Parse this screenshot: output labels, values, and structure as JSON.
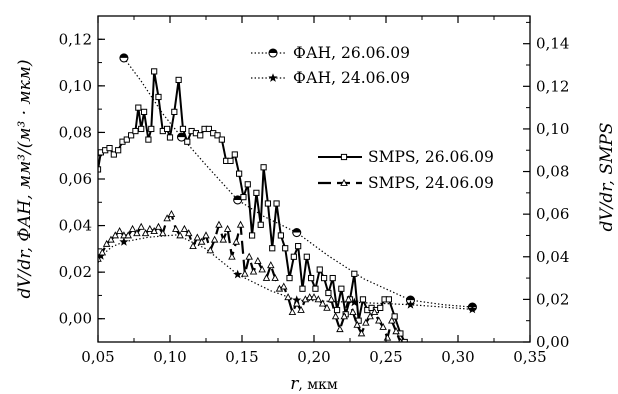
{
  "chart_data": {
    "type": "line",
    "x_axis": {
      "label_var": "r",
      "label_unit": ", мкм",
      "range": [
        0.05,
        0.35
      ],
      "ticks": [
        "0,05",
        "0,10",
        "0,15",
        "0,20",
        "0,25",
        "0,30",
        "0,35"
      ]
    },
    "y_left": {
      "label": "dV/dr, ФАН, мм³/(м³ · мкм)",
      "range": [
        -0.01,
        0.13
      ],
      "ticks": [
        "0,00",
        "0,02",
        "0,04",
        "0,06",
        "0,08",
        "0,10",
        "0,12"
      ]
    },
    "y_right": {
      "label": "dV/dr, SMPS",
      "range": [
        0.0,
        0.153
      ],
      "ticks": [
        "0,00",
        "0,02",
        "0,04",
        "0,06",
        "0,08",
        "0,10",
        "0,12",
        "0,14"
      ]
    },
    "legend": {
      "top_right": [
        "ФАН, 26.06.09",
        "ФАН, 24.06.09"
      ],
      "middle_right": [
        "SMPS, 26.06.09",
        "SMPS, 24.06.09"
      ]
    },
    "series": [
      {
        "name": "ФАН, 26.06.09",
        "axis": "left",
        "style": "dotted",
        "marker": "half-filled-circle",
        "markers": [
          [
            0.068,
            0.112
          ],
          [
            0.108,
            0.078
          ],
          [
            0.147,
            0.051
          ],
          [
            0.188,
            0.037
          ],
          [
            0.267,
            0.008
          ],
          [
            0.31,
            0.005
          ]
        ],
        "curve": [
          [
            0.068,
            0.112
          ],
          [
            0.08,
            0.102
          ],
          [
            0.095,
            0.088
          ],
          [
            0.108,
            0.078
          ],
          [
            0.125,
            0.066
          ],
          [
            0.147,
            0.051
          ],
          [
            0.165,
            0.044
          ],
          [
            0.188,
            0.037
          ],
          [
            0.21,
            0.027
          ],
          [
            0.235,
            0.017
          ],
          [
            0.267,
            0.008
          ],
          [
            0.29,
            0.006
          ],
          [
            0.31,
            0.005
          ]
        ]
      },
      {
        "name": "ФАН, 24.06.09",
        "axis": "left",
        "style": "dotted",
        "marker": "star",
        "markers": [
          [
            0.052,
            0.027
          ],
          [
            0.068,
            0.033
          ],
          [
            0.147,
            0.019
          ],
          [
            0.188,
            0.008
          ],
          [
            0.228,
            0.007
          ],
          [
            0.267,
            0.006
          ],
          [
            0.31,
            0.004
          ]
        ],
        "curve": [
          [
            0.05,
            0.024
          ],
          [
            0.052,
            0.027
          ],
          [
            0.06,
            0.031
          ],
          [
            0.068,
            0.033
          ],
          [
            0.085,
            0.035
          ],
          [
            0.105,
            0.036
          ],
          [
            0.125,
            0.03
          ],
          [
            0.147,
            0.019
          ],
          [
            0.17,
            0.012
          ],
          [
            0.188,
            0.008
          ],
          [
            0.21,
            0.0075
          ],
          [
            0.228,
            0.007
          ],
          [
            0.25,
            0.0065
          ],
          [
            0.267,
            0.006
          ],
          [
            0.29,
            0.005
          ],
          [
            0.31,
            0.004
          ]
        ]
      },
      {
        "name": "SMPS, 26.06.09",
        "axis": "right",
        "style": "solid",
        "marker": "open-square",
        "points": [
          [
            0.05,
            0.081
          ],
          [
            0.052,
            0.089
          ],
          [
            0.055,
            0.09
          ],
          [
            0.058,
            0.091
          ],
          [
            0.061,
            0.088
          ],
          [
            0.064,
            0.09
          ],
          [
            0.067,
            0.094
          ],
          [
            0.07,
            0.095
          ],
          [
            0.073,
            0.097
          ],
          [
            0.076,
            0.099
          ],
          [
            0.078,
            0.11
          ],
          [
            0.08,
            0.1
          ],
          [
            0.082,
            0.108
          ],
          [
            0.085,
            0.095
          ],
          [
            0.087,
            0.1
          ],
          [
            0.089,
            0.127
          ],
          [
            0.092,
            0.115
          ],
          [
            0.095,
            0.099
          ],
          [
            0.098,
            0.1
          ],
          [
            0.1,
            0.096
          ],
          [
            0.103,
            0.108
          ],
          [
            0.106,
            0.123
          ],
          [
            0.109,
            0.1
          ],
          [
            0.112,
            0.094
          ],
          [
            0.115,
            0.099
          ],
          [
            0.118,
            0.098
          ],
          [
            0.121,
            0.097
          ],
          [
            0.124,
            0.1
          ],
          [
            0.127,
            0.1
          ],
          [
            0.13,
            0.098
          ],
          [
            0.133,
            0.097
          ],
          [
            0.136,
            0.095
          ],
          [
            0.139,
            0.085
          ],
          [
            0.142,
            0.085
          ],
          [
            0.145,
            0.088
          ],
          [
            0.148,
            0.079
          ],
          [
            0.151,
            0.068
          ],
          [
            0.154,
            0.074
          ],
          [
            0.157,
            0.05
          ],
          [
            0.16,
            0.07
          ],
          [
            0.163,
            0.055
          ],
          [
            0.165,
            0.082
          ],
          [
            0.168,
            0.065
          ],
          [
            0.171,
            0.044
          ],
          [
            0.174,
            0.065
          ],
          [
            0.177,
            0.05
          ],
          [
            0.18,
            0.044
          ],
          [
            0.183,
            0.03
          ],
          [
            0.186,
            0.04
          ],
          [
            0.189,
            0.045
          ],
          [
            0.192,
            0.025
          ],
          [
            0.195,
            0.04
          ],
          [
            0.198,
            0.03
          ],
          [
            0.201,
            0.025
          ],
          [
            0.204,
            0.034
          ],
          [
            0.207,
            0.03
          ],
          [
            0.21,
            0.023
          ],
          [
            0.213,
            0.03
          ],
          [
            0.216,
            0.015
          ],
          [
            0.219,
            0.025
          ],
          [
            0.222,
            0.013
          ],
          [
            0.225,
            0.02
          ],
          [
            0.228,
            0.032
          ],
          [
            0.231,
            0.01
          ],
          [
            0.234,
            0.02
          ],
          [
            0.237,
            0.015
          ],
          [
            0.24,
            0.016
          ],
          [
            0.243,
            0.015
          ],
          [
            0.246,
            0.016
          ],
          [
            0.249,
            0.02
          ],
          [
            0.252,
            0.02
          ],
          [
            0.256,
            0.012
          ],
          [
            0.26,
            0.004
          ],
          [
            0.263,
            0.0
          ]
        ]
      },
      {
        "name": "SMPS, 24.06.09",
        "axis": "right",
        "style": "dashed",
        "marker": "open-triangle",
        "points": [
          [
            0.05,
            0.039
          ],
          [
            0.053,
            0.042
          ],
          [
            0.056,
            0.046
          ],
          [
            0.059,
            0.048
          ],
          [
            0.062,
            0.05
          ],
          [
            0.065,
            0.052
          ],
          [
            0.068,
            0.05
          ],
          [
            0.071,
            0.05
          ],
          [
            0.074,
            0.053
          ],
          [
            0.077,
            0.051
          ],
          [
            0.08,
            0.054
          ],
          [
            0.083,
            0.051
          ],
          [
            0.086,
            0.053
          ],
          [
            0.089,
            0.052
          ],
          [
            0.092,
            0.054
          ],
          [
            0.095,
            0.051
          ],
          [
            0.098,
            0.058
          ],
          [
            0.101,
            0.06
          ],
          [
            0.104,
            0.053
          ],
          [
            0.107,
            0.05
          ],
          [
            0.11,
            0.053
          ],
          [
            0.113,
            0.051
          ],
          [
            0.116,
            0.045
          ],
          [
            0.119,
            0.049
          ],
          [
            0.122,
            0.047
          ],
          [
            0.125,
            0.05
          ],
          [
            0.128,
            0.043
          ],
          [
            0.131,
            0.048
          ],
          [
            0.134,
            0.055
          ],
          [
            0.137,
            0.048
          ],
          [
            0.14,
            0.053
          ],
          [
            0.143,
            0.04
          ],
          [
            0.146,
            0.047
          ],
          [
            0.149,
            0.055
          ],
          [
            0.152,
            0.032
          ],
          [
            0.155,
            0.04
          ],
          [
            0.158,
            0.033
          ],
          [
            0.161,
            0.038
          ],
          [
            0.164,
            0.034
          ],
          [
            0.167,
            0.03
          ],
          [
            0.17,
            0.036
          ],
          [
            0.173,
            0.03
          ],
          [
            0.176,
            0.025
          ],
          [
            0.179,
            0.026
          ],
          [
            0.182,
            0.021
          ],
          [
            0.185,
            0.014
          ],
          [
            0.188,
            0.018
          ],
          [
            0.191,
            0.015
          ],
          [
            0.194,
            0.02
          ],
          [
            0.197,
            0.021
          ],
          [
            0.2,
            0.021
          ],
          [
            0.203,
            0.02
          ],
          [
            0.206,
            0.018
          ],
          [
            0.209,
            0.016
          ],
          [
            0.212,
            0.02
          ],
          [
            0.215,
            0.012
          ],
          [
            0.218,
            0.006
          ],
          [
            0.221,
            0.012
          ],
          [
            0.224,
            0.02
          ],
          [
            0.227,
            0.014
          ],
          [
            0.23,
            0.008
          ],
          [
            0.233,
            0.004
          ],
          [
            0.236,
            0.009
          ],
          [
            0.239,
            0.012
          ],
          [
            0.242,
            0.014
          ],
          [
            0.245,
            0.01
          ],
          [
            0.248,
            0.007
          ],
          [
            0.251,
            0.002
          ],
          [
            0.254,
            0.01
          ],
          [
            0.257,
            0.005
          ],
          [
            0.26,
            0.0
          ]
        ]
      }
    ]
  }
}
